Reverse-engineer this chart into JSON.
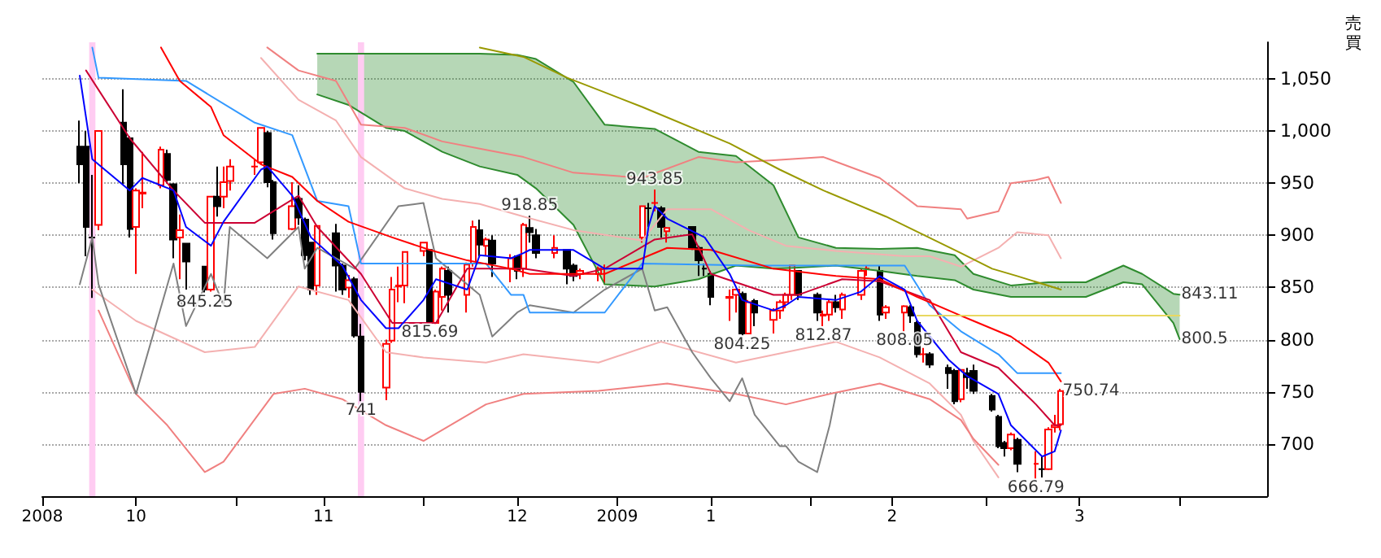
{
  "chart_data": {
    "type": "candlestick",
    "x": [
      "2008-10-07",
      "2008-10-08",
      "2008-10-09",
      "2008-10-10",
      "2008-10-14",
      "2008-10-15",
      "2008-10-16",
      "2008-10-17",
      "2008-10-20",
      "2008-10-21",
      "2008-10-22",
      "2008-10-23",
      "2008-10-24",
      "2008-10-27",
      "2008-10-28",
      "2008-10-29",
      "2008-10-30",
      "2008-10-31",
      "2008-11-04",
      "2008-11-05",
      "2008-11-06",
      "2008-11-07",
      "2008-11-10",
      "2008-11-11",
      "2008-11-12",
      "2008-11-13",
      "2008-11-14",
      "2008-11-17",
      "2008-11-18",
      "2008-11-19",
      "2008-11-20",
      "2008-11-21",
      "2008-11-25",
      "2008-11-26",
      "2008-11-27",
      "2008-11-28",
      "2008-12-01",
      "2008-12-02",
      "2008-12-03",
      "2008-12-04",
      "2008-12-05",
      "2008-12-08",
      "2008-12-09",
      "2008-12-10",
      "2008-12-11",
      "2008-12-12",
      "2008-12-15",
      "2008-12-16",
      "2008-12-17",
      "2008-12-18",
      "2008-12-19",
      "2008-12-22",
      "2008-12-24",
      "2008-12-25",
      "2008-12-26",
      "2008-12-29",
      "2008-12-30",
      "2009-01-05",
      "2009-01-06",
      "2009-01-07",
      "2009-01-08",
      "2009-01-09",
      "2009-01-13",
      "2009-01-14",
      "2009-01-15",
      "2009-01-16",
      "2009-01-19",
      "2009-01-20",
      "2009-01-21",
      "2009-01-22",
      "2009-01-23",
      "2009-01-26",
      "2009-01-27",
      "2009-01-28",
      "2009-01-29",
      "2009-01-30",
      "2009-02-02",
      "2009-02-03",
      "2009-02-04",
      "2009-02-05",
      "2009-02-06",
      "2009-02-09",
      "2009-02-10",
      "2009-02-12",
      "2009-02-13",
      "2009-02-16",
      "2009-02-17",
      "2009-02-18",
      "2009-02-19",
      "2009-02-20",
      "2009-02-23",
      "2009-02-24",
      "2009-02-25",
      "2009-02-26",
      "2009-02-27",
      "2009-03-02",
      "2009-03-03",
      "2009-03-04",
      "2009-03-05",
      "2009-03-06",
      "2009-03-09",
      "2009-03-10",
      "2009-03-11",
      "2009-03-12",
      "2009-03-13"
    ],
    "ohlc": [
      [
        985,
        1010,
        950,
        968
      ],
      [
        985,
        1000,
        880,
        908
      ],
      [
        898,
        958,
        840,
        898
      ],
      [
        910,
        1000,
        905,
        1000
      ],
      [
        1008,
        1040,
        948,
        968
      ],
      [
        993,
        995,
        898,
        906
      ],
      [
        908,
        945,
        863,
        943
      ],
      [
        940,
        980,
        926,
        941
      ],
      [
        948,
        985,
        945,
        982
      ],
      [
        978,
        982,
        950,
        953
      ],
      [
        949,
        950,
        878,
        896
      ],
      [
        898,
        920,
        858,
        905
      ],
      [
        892,
        892,
        848,
        875
      ],
      [
        870,
        870,
        845.25,
        848
      ],
      [
        848,
        937,
        846,
        937
      ],
      [
        937,
        966,
        918,
        928
      ],
      [
        937,
        966,
        926,
        951
      ],
      [
        952,
        973,
        943,
        966
      ],
      [
        966,
        973,
        958,
        966
      ],
      [
        970,
        1003,
        968,
        1003
      ],
      [
        998,
        1000,
        946,
        951
      ],
      [
        951,
        953,
        896,
        902
      ],
      [
        906,
        951,
        905,
        928
      ],
      [
        935,
        948,
        910,
        917
      ],
      [
        915,
        917,
        876,
        881
      ],
      [
        893,
        893,
        843,
        848
      ],
      [
        852,
        910,
        843,
        909
      ],
      [
        902,
        911,
        846,
        871
      ],
      [
        871,
        873,
        843,
        848
      ],
      [
        850,
        862,
        840,
        857
      ],
      [
        858,
        860,
        802,
        804
      ],
      [
        803,
        815,
        741,
        750
      ],
      [
        754,
        800,
        742,
        796
      ],
      [
        799,
        860,
        797,
        848
      ],
      [
        851,
        870,
        836,
        852
      ],
      [
        852,
        884,
        835,
        884
      ],
      [
        885,
        893,
        880,
        893
      ],
      [
        886,
        887,
        815.69,
        816
      ],
      [
        816,
        848,
        815,
        846
      ],
      [
        841,
        870,
        828,
        868
      ],
      [
        866,
        870,
        826,
        843
      ],
      [
        843,
        874,
        826,
        872
      ],
      [
        873,
        914,
        870,
        908
      ],
      [
        905,
        915,
        880,
        891
      ],
      [
        890,
        898,
        880,
        896
      ],
      [
        895,
        900,
        860,
        873
      ],
      [
        868,
        882,
        855,
        878
      ],
      [
        880,
        880,
        858,
        866
      ],
      [
        868,
        912,
        860,
        910
      ],
      [
        907,
        918.85,
        893,
        903
      ],
      [
        900,
        906,
        878,
        883
      ],
      [
        883,
        900,
        878,
        888
      ],
      [
        886,
        886,
        853,
        868
      ],
      [
        871,
        873,
        856,
        861
      ],
      [
        863,
        868,
        858,
        866
      ],
      [
        863,
        870,
        856,
        868
      ],
      [
        868,
        872,
        853,
        868
      ],
      [
        898,
        928,
        893,
        928
      ],
      [
        926,
        931,
        908,
        926
      ],
      [
        931,
        943.85,
        923,
        931
      ],
      [
        926,
        928,
        898,
        908
      ],
      [
        904,
        908,
        893,
        907
      ],
      [
        908,
        908,
        886,
        888
      ],
      [
        888,
        890,
        861,
        876
      ],
      [
        868,
        873,
        861,
        868
      ],
      [
        863,
        866,
        833,
        841
      ],
      [
        840,
        848,
        818,
        841
      ],
      [
        843,
        848,
        826,
        848
      ],
      [
        844,
        846,
        804.25,
        806
      ],
      [
        806,
        838,
        806,
        836
      ],
      [
        837,
        839,
        813,
        826
      ],
      [
        819,
        830,
        806,
        828
      ],
      [
        828,
        838,
        820,
        836
      ],
      [
        836,
        845,
        830,
        843
      ],
      [
        843,
        871,
        838,
        871
      ],
      [
        866,
        866,
        838,
        843
      ],
      [
        843,
        845,
        818,
        826
      ],
      [
        823,
        828,
        812.87,
        824
      ],
      [
        824,
        838,
        818,
        836
      ],
      [
        836,
        843,
        826,
        831
      ],
      [
        829,
        845,
        820,
        843
      ],
      [
        843,
        868,
        838,
        866
      ],
      [
        868,
        871,
        861,
        868
      ],
      [
        866,
        871,
        818,
        824
      ],
      [
        826,
        833,
        820,
        831
      ],
      [
        826,
        833,
        808.05,
        832
      ],
      [
        831,
        833,
        816,
        823
      ],
      [
        816,
        818,
        783,
        786
      ],
      [
        786,
        792,
        778,
        786
      ],
      [
        786,
        788,
        773,
        776
      ],
      [
        773,
        776,
        753,
        768
      ],
      [
        770,
        772,
        738,
        741
      ],
      [
        743,
        771,
        740,
        771
      ],
      [
        768,
        773,
        753,
        764
      ],
      [
        770,
        776,
        748,
        751
      ],
      [
        746,
        748,
        731,
        733
      ],
      [
        726,
        728,
        696,
        698
      ],
      [
        701,
        703,
        688,
        696
      ],
      [
        696,
        711,
        694,
        709
      ],
      [
        704,
        706,
        673,
        681
      ],
      [
        681,
        693,
        666.79,
        681
      ],
      [
        676,
        688,
        668,
        676
      ],
      [
        676,
        716,
        675,
        714
      ],
      [
        716,
        728,
        711,
        718
      ],
      [
        719,
        753,
        713,
        750.74
      ]
    ],
    "series": [
      {
        "type": "line",
        "color": "#2e8b2e",
        "x": [
          "2008-11-14",
          "2008-11-19",
          "2008-11-25",
          "2008-11-28",
          "2008-12-04",
          "2008-12-10",
          "2008-12-16",
          "2008-12-19",
          "2008-12-25",
          "2008-12-30",
          "2009-01-07",
          "2009-01-14",
          "2009-01-20",
          "2009-01-26",
          "2009-01-30",
          "2009-02-05",
          "2009-02-12",
          "2009-02-18",
          "2009-02-24",
          "2009-02-27",
          "2009-03-05",
          "2009-03-11",
          "2009-03-17",
          "2009-03-23",
          "2009-03-26",
          "2009-03-31",
          "2009-04-01"
        ],
        "values": [
          1074,
          1074,
          1074,
          1074,
          1074,
          1074,
          1073,
          1069,
          1047,
          1006,
          1002,
          980,
          976,
          948,
          898,
          888,
          887,
          888,
          881,
          863,
          852,
          855,
          855,
          871,
          863,
          844,
          843.11
        ],
        "upper": [
          1074,
          1074,
          1074,
          1074,
          1074,
          1074,
          1073,
          1069,
          1047,
          1006,
          1002,
          980,
          976,
          948,
          898,
          888,
          887,
          888,
          881,
          863,
          852,
          855,
          855,
          871,
          863,
          844,
          843.11
        ],
        "lower": [
          1035,
          1025,
          1003,
          1000,
          980,
          966,
          958,
          945,
          910,
          853,
          851,
          858,
          871,
          868,
          869,
          871,
          866,
          861,
          857,
          848,
          841,
          841,
          841,
          855,
          853,
          816,
          800.5
        ]
      },
      {
        "type": "line",
        "color": "#2e8b2e",
        "x": [
          "2008-11-14",
          "2008-11-19",
          "2008-11-25",
          "2008-11-28",
          "2008-12-04",
          "2008-12-10",
          "2008-12-16",
          "2008-12-19",
          "2008-12-25",
          "2008-12-30",
          "2009-01-07",
          "2009-01-14",
          "2009-01-20",
          "2009-01-26",
          "2009-01-30",
          "2009-02-05",
          "2009-02-12",
          "2009-02-18",
          "2009-02-24",
          "2009-02-27",
          "2009-03-05",
          "2009-03-11",
          "2009-03-17",
          "2009-03-23",
          "2009-03-26",
          "2009-03-31",
          "2009-04-01"
        ],
        "values": [
          1035,
          1025,
          1003,
          1000,
          980,
          966,
          958,
          945,
          910,
          853,
          851,
          858,
          871,
          868,
          869,
          871,
          866,
          861,
          857,
          848,
          841,
          841,
          841,
          855,
          853,
          816,
          800.5
        ]
      },
      {
        "type": "line",
        "color": "#f08080",
        "x": [
          "2008-11-06",
          "2008-11-11",
          "2008-11-17",
          "2008-11-21",
          "2008-11-28",
          "2008-12-04",
          "2008-12-10",
          "2008-12-17",
          "2008-12-25",
          "2009-01-05",
          "2009-01-14",
          "2009-01-20",
          "2009-01-26",
          "2009-02-03",
          "2009-02-12",
          "2009-02-18",
          "2009-02-25",
          "2009-02-26",
          "2009-03-03",
          "2009-03-05",
          "2009-03-09",
          "2009-03-11",
          "2009-03-13"
        ],
        "values": [
          1080,
          1058,
          1048,
          1006,
          1003,
          990,
          983,
          975,
          960,
          955,
          975,
          970,
          972,
          975,
          955,
          928,
          925,
          916,
          923,
          950,
          953,
          956,
          931
        ]
      },
      {
        "type": "line",
        "color": "#f4b0b0",
        "x": [
          "2008-11-05",
          "2008-11-11",
          "2008-11-17",
          "2008-11-21",
          "2008-11-28",
          "2008-12-04",
          "2008-12-10",
          "2008-12-17",
          "2008-12-25",
          "2009-01-05",
          "2009-01-09",
          "2009-01-16",
          "2009-01-22",
          "2009-01-28",
          "2009-02-05",
          "2009-02-16",
          "2009-02-20",
          "2009-02-25",
          "2009-03-03",
          "2009-03-06",
          "2009-03-11",
          "2009-03-13"
        ],
        "values": [
          1070,
          1030,
          1010,
          975,
          945,
          935,
          930,
          918,
          905,
          895,
          925,
          925,
          905,
          890,
          885,
          880,
          880,
          870,
          888,
          903,
          900,
          878
        ]
      },
      {
        "type": "line",
        "color": "#f4b0b0",
        "x": [
          "2008-10-09",
          "2008-10-16",
          "2008-10-27",
          "2008-11-04",
          "2008-11-11",
          "2008-11-19",
          "2008-11-25",
          "2008-12-01",
          "2008-12-11",
          "2008-12-17",
          "2008-12-29",
          "2009-01-08",
          "2009-01-20",
          "2009-01-28",
          "2009-02-05",
          "2009-02-12",
          "2009-02-20",
          "2009-02-25",
          "2009-02-27",
          "2009-03-03"
        ],
        "values": [
          848,
          818,
          788,
          793,
          851,
          838,
          788,
          783,
          778,
          786,
          778,
          798,
          778,
          788,
          798,
          783,
          758,
          728,
          703,
          668
        ]
      },
      {
        "type": "line",
        "color": "#f08080",
        "x": [
          "2008-10-10",
          "2008-10-16",
          "2008-10-21",
          "2008-10-27",
          "2008-10-30",
          "2008-11-07",
          "2008-11-12",
          "2008-11-18",
          "2008-11-25",
          "2008-12-01",
          "2008-12-11",
          "2008-12-17",
          "2008-12-29",
          "2009-01-09",
          "2009-01-20",
          "2009-01-28",
          "2009-02-04",
          "2009-02-12",
          "2009-02-20",
          "2009-02-25",
          "2009-02-27",
          "2009-03-03"
        ],
        "values": [
          828,
          748,
          718,
          673,
          683,
          748,
          753,
          743,
          718,
          703,
          738,
          748,
          751,
          758,
          748,
          738,
          748,
          758,
          743,
          723,
          705,
          680
        ]
      },
      {
        "type": "line",
        "color": "#999900",
        "x": [
          "2008-12-10",
          "2008-12-17",
          "2008-12-24",
          "2009-01-05",
          "2009-01-19",
          "2009-01-27",
          "2009-02-03",
          "2009-02-13",
          "2009-02-25",
          "2009-03-02",
          "2009-03-06",
          "2009-03-13"
        ],
        "values": [
          1080,
          1071,
          1051,
          1023,
          988,
          963,
          943,
          918,
          883,
          868,
          861,
          848
        ]
      },
      {
        "type": "line",
        "color": "#808080",
        "x": [
          "2008-10-07",
          "2008-10-09",
          "2008-10-10",
          "2008-10-16",
          "2008-10-22",
          "2008-10-24",
          "2008-10-28",
          "2008-10-30",
          "2008-10-31",
          "2008-11-06",
          "2008-11-11",
          "2008-11-12",
          "2008-11-14",
          "2008-11-20",
          "2008-11-27",
          "2008-12-01",
          "2008-12-03",
          "2008-12-05",
          "2008-12-10",
          "2008-12-12",
          "2008-12-16",
          "2008-12-18",
          "2008-12-25",
          "2008-12-30",
          "2009-01-05",
          "2009-01-07",
          "2009-01-09",
          "2009-01-13",
          "2009-01-16",
          "2009-01-19",
          "2009-01-21",
          "2009-01-23",
          "2009-01-27",
          "2009-01-28",
          "2009-01-30",
          "2009-02-02",
          "2009-02-04",
          "2009-02-05"
        ],
        "values": [
          853,
          898,
          853,
          748,
          873,
          813,
          863,
          833,
          908,
          878,
          908,
          868,
          888,
          868,
          928,
          931,
          878,
          868,
          843,
          803,
          826,
          833,
          826,
          848,
          868,
          828,
          831,
          788,
          763,
          741,
          763,
          728,
          698,
          698,
          683,
          673,
          718,
          748
        ]
      },
      {
        "type": "line",
        "color": "#3399ff",
        "x": [
          "2008-10-09",
          "2008-10-10",
          "2008-10-24",
          "2008-11-04",
          "2008-11-10",
          "2008-11-14",
          "2008-11-19",
          "2008-11-21",
          "2008-12-11",
          "2008-12-15",
          "2008-12-17",
          "2008-12-18",
          "2008-12-30",
          "2009-01-05",
          "2009-01-23",
          "2009-02-16",
          "2009-02-20",
          "2009-02-25",
          "2009-03-03",
          "2009-03-06",
          "2009-03-13"
        ],
        "values": [
          1080,
          1051,
          1048,
          1008,
          996,
          933,
          928,
          873,
          873,
          843,
          843,
          826,
          826,
          873,
          871,
          871,
          833,
          808,
          786,
          768,
          768
        ]
      },
      {
        "type": "line",
        "color": "#cc0033",
        "x": [
          "2008-10-08",
          "2008-10-15",
          "2008-10-22",
          "2008-10-27",
          "2008-11-04",
          "2008-11-11",
          "2008-11-14",
          "2008-11-21",
          "2008-11-26",
          "2008-12-03",
          "2008-12-08",
          "2008-12-17",
          "2008-12-25",
          "2008-12-30",
          "2009-01-07",
          "2009-01-13",
          "2009-01-16",
          "2009-01-26",
          "2009-01-30",
          "2009-02-06",
          "2009-02-12",
          "2009-02-20",
          "2009-02-25",
          "2009-03-03",
          "2009-03-09",
          "2009-03-12",
          "2009-03-13"
        ],
        "values": [
          1058,
          993,
          943,
          912,
          912,
          938,
          908,
          863,
          816,
          816,
          868,
          868,
          861,
          868,
          896,
          901,
          863,
          843,
          843,
          858,
          856,
          838,
          788,
          773,
          738,
          718,
          718
        ]
      },
      {
        "type": "line",
        "color": "#ff0000",
        "x": [
          "2008-10-20",
          "2008-10-23",
          "2008-10-28",
          "2008-10-30",
          "2008-11-05",
          "2008-11-10",
          "2008-11-14",
          "2008-11-19",
          "2008-11-26",
          "2008-12-02",
          "2008-12-08",
          "2008-12-15",
          "2008-12-18",
          "2008-12-30",
          "2009-01-09",
          "2009-01-16",
          "2009-01-26",
          "2009-02-05",
          "2009-02-12",
          "2009-02-18",
          "2009-02-25",
          "2009-02-27",
          "2009-03-05",
          "2009-03-11",
          "2009-03-13"
        ],
        "values": [
          1080,
          1048,
          1023,
          996,
          968,
          956,
          933,
          913,
          898,
          886,
          876,
          868,
          863,
          863,
          888,
          886,
          868,
          861,
          858,
          841,
          823,
          818,
          803,
          778,
          760
        ]
      },
      {
        "type": "line",
        "color": "#0000ff",
        "x": [
          "2008-10-07",
          "2008-10-09",
          "2008-10-15",
          "2008-10-17",
          "2008-10-22",
          "2008-10-24",
          "2008-10-28",
          "2008-10-30",
          "2008-11-05",
          "2008-11-06",
          "2008-11-10",
          "2008-11-13",
          "2008-11-18",
          "2008-11-21",
          "2008-11-25",
          "2008-11-27",
          "2008-12-01",
          "2008-12-03",
          "2008-12-08",
          "2008-12-10",
          "2008-12-15",
          "2008-12-17",
          "2008-12-18",
          "2008-12-25",
          "2008-12-30",
          "2009-01-05",
          "2009-01-06",
          "2009-01-07",
          "2009-01-09",
          "2009-01-15",
          "2009-01-19",
          "2009-01-21",
          "2009-01-26",
          "2009-01-28",
          "2009-01-30",
          "2009-02-05",
          "2009-02-09",
          "2009-02-12",
          "2009-02-16",
          "2009-02-18",
          "2009-02-23",
          "2009-02-26",
          "2009-03-03",
          "2009-03-05",
          "2009-03-10",
          "2009-03-12",
          "2009-03-13"
        ],
        "values": [
          1053,
          973,
          943,
          955,
          943,
          908,
          890,
          913,
          963,
          966,
          938,
          898,
          871,
          838,
          811,
          811,
          838,
          858,
          848,
          881,
          878,
          883,
          886,
          886,
          868,
          868,
          908,
          928,
          916,
          898,
          863,
          838,
          828,
          833,
          841,
          838,
          846,
          861,
          848,
          818,
          781,
          765,
          748,
          718,
          688,
          693,
          713
        ]
      },
      {
        "type": "line",
        "color": "#e8d860",
        "x": [
          "2009-02-18",
          "2009-04-01"
        ],
        "values": [
          823,
          823
        ]
      }
    ],
    "bands": [
      {
        "axis": "x",
        "from": "2008-10-08T12:00",
        "to": "2008-10-09T12:00",
        "color": "#ffccf2"
      },
      {
        "axis": "x",
        "from": "2008-11-20T12:00",
        "to": "2008-11-21T12:00",
        "color": "#ffccf2"
      }
    ],
    "annotations": [
      {
        "text": "845.25",
        "x": "2008-10-27",
        "y": 845.25
      },
      {
        "text": "741",
        "x": "2008-11-21",
        "y": 741
      },
      {
        "text": "815.69",
        "x": "2008-12-02",
        "y": 815.69
      },
      {
        "text": "918.85",
        "x": "2008-12-18",
        "y": 918.85
      },
      {
        "text": "943.85",
        "x": "2009-01-07",
        "y": 943.85
      },
      {
        "text": "804.25",
        "x": "2009-01-21",
        "y": 804.25
      },
      {
        "text": "812.87",
        "x": "2009-02-03",
        "y": 812.87
      },
      {
        "text": "808.05",
        "x": "2009-02-16",
        "y": 808.05
      },
      {
        "text": "666.79",
        "x": "2009-03-09",
        "y": 666.79
      },
      {
        "text": "750.74",
        "x": "2009-03-13",
        "y": 750.74
      },
      {
        "text": "843.11",
        "x": "2009-04-01",
        "y": 843.11
      },
      {
        "text": "800.5",
        "x": "2009-04-01",
        "y": 800.5
      },
      "売",
      "買"
    ],
    "xlim": [
      "2008-10-01",
      "2009-04-15"
    ],
    "ylim": [
      650,
      1085
    ],
    "xticks": [
      {
        "value": "2008-10-01",
        "label": "2008"
      },
      {
        "value": "2008-10-16",
        "label": "10"
      },
      {
        "value": "2008-11-01",
        "label": null
      },
      {
        "value": "2008-11-15",
        "label": "11"
      },
      {
        "value": "2008-12-01",
        "label": null
      },
      {
        "value": "2008-12-16",
        "label": "12"
      },
      {
        "value": "2009-01-01",
        "label": "2009"
      },
      {
        "value": "2009-01-16",
        "label": "1"
      },
      {
        "value": "2009-02-01",
        "label": null
      },
      {
        "value": "2009-02-14",
        "label": "2"
      },
      {
        "value": "2009-03-01",
        "label": null
      },
      {
        "value": "2009-03-16",
        "label": "3"
      },
      {
        "value": "2009-04-01",
        "label": null
      }
    ],
    "yticks": [
      700,
      750,
      800,
      850,
      900,
      950,
      {
        "value": 1000,
        "label": "1,000"
      },
      {
        "value": 1050,
        "label": "1,050"
      }
    ],
    "grid": "y"
  }
}
